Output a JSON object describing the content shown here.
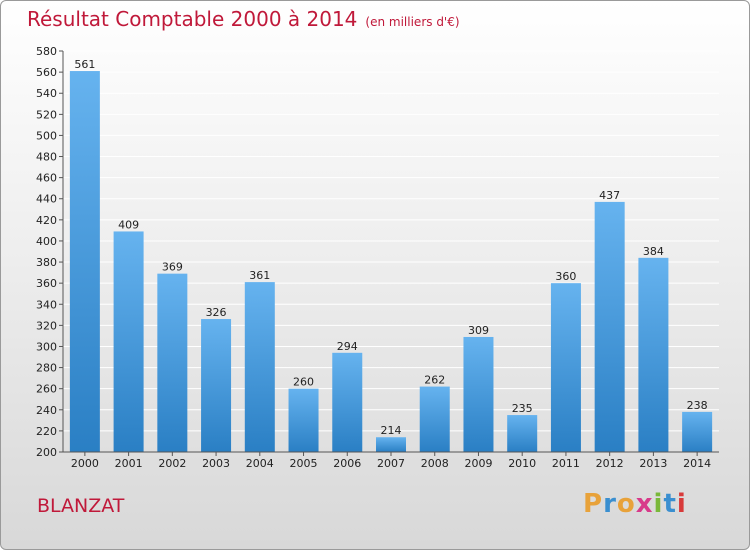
{
  "header": {
    "title": "Résultat Comptable 2000 à 2014",
    "subtitle": "(en milliers d'€)"
  },
  "footer": {
    "town": "BLANZAT",
    "logo_letters": [
      "P",
      "r",
      "o",
      "x",
      "i",
      "t",
      "i"
    ]
  },
  "colors": {
    "bar_top": "#66b3ef",
    "bar_bottom": "#2a7fc4",
    "title": "#c0193a"
  },
  "chart_data": {
    "type": "bar",
    "title": "Résultat Comptable 2000 à 2014",
    "subtitle": "(en milliers d'€)",
    "categories": [
      "2000",
      "2001",
      "2002",
      "2003",
      "2004",
      "2005",
      "2006",
      "2007",
      "2008",
      "2009",
      "2010",
      "2011",
      "2012",
      "2013",
      "2014"
    ],
    "values": [
      561,
      409,
      369,
      326,
      361,
      260,
      294,
      214,
      262,
      309,
      235,
      360,
      437,
      384,
      238
    ],
    "ylim": [
      200,
      580
    ],
    "ytick_step": 20,
    "grid": "horizontal"
  }
}
